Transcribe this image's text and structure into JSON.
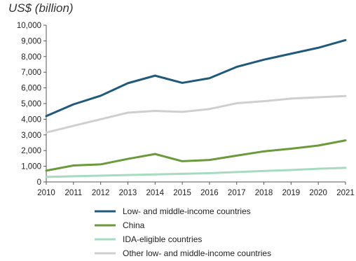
{
  "chart_data": {
    "type": "line",
    "unit_label": "US$ (billion)",
    "x": [
      2010,
      2011,
      2012,
      2013,
      2014,
      2015,
      2016,
      2017,
      2018,
      2019,
      2020,
      2021
    ],
    "x_ticks": [
      "2010",
      "2011",
      "2012",
      "2013",
      "2014",
      "2015",
      "2016",
      "2017",
      "2018",
      "2019",
      "2020",
      "2021"
    ],
    "ylim": [
      0,
      10000
    ],
    "y_ticks": [
      0,
      1000,
      2000,
      3000,
      4000,
      5000,
      6000,
      7000,
      8000,
      9000,
      10000
    ],
    "y_tick_labels": [
      "0",
      "1,000",
      "2,000",
      "3,000",
      "4,000",
      "5,000",
      "6,000",
      "7,000",
      "8,000",
      "9,000",
      "10,000"
    ],
    "grid": false,
    "legend_position": "bottom",
    "series": [
      {
        "name": "Low- and middle-income countries",
        "color": "#1f5a7a",
        "values": [
          4200,
          4950,
          5500,
          6300,
          6780,
          6320,
          6620,
          7340,
          7800,
          8180,
          8560,
          9050
        ]
      },
      {
        "name": "China",
        "color": "#6a9a3a",
        "values": [
          720,
          1050,
          1120,
          1470,
          1780,
          1320,
          1400,
          1680,
          1950,
          2120,
          2320,
          2650
        ]
      },
      {
        "name": "IDA-eligible countries",
        "color": "#a6dbc0",
        "values": [
          320,
          360,
          400,
          440,
          480,
          520,
          560,
          630,
          700,
          760,
          840,
          900
        ]
      },
      {
        "name": "Other low- and middle-income countries",
        "color": "#cfcfcf",
        "values": [
          3150,
          3580,
          4000,
          4420,
          4530,
          4470,
          4650,
          5020,
          5150,
          5320,
          5400,
          5480
        ]
      }
    ]
  }
}
